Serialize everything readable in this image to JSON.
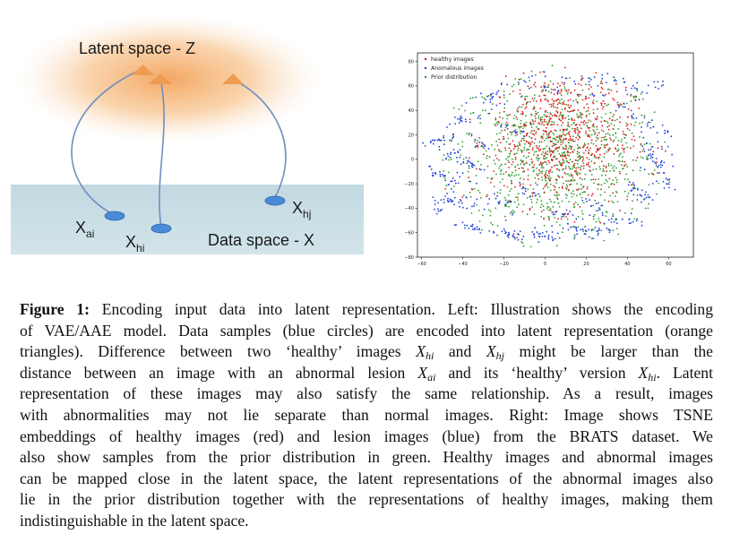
{
  "diagram": {
    "latent_label": "Latent space - Z",
    "data_label": "Data space - X",
    "points": [
      {
        "base": "X",
        "sub": "ai"
      },
      {
        "base": "X",
        "sub": "hi"
      },
      {
        "base": "X",
        "sub": "hj"
      }
    ],
    "colors": {
      "latent_glow": "#f2a25a",
      "triangle": "#ee9c52",
      "data_band": "#c7dce3",
      "circle": "#4b8ad6",
      "curve": "#6f8fc1"
    }
  },
  "chart_data": {
    "type": "scatter",
    "title": "",
    "xlabel": "",
    "ylabel": "",
    "xlim": [
      -62,
      72
    ],
    "ylim": [
      -80,
      87
    ],
    "x_ticks": [
      -60,
      -40,
      -20,
      0,
      20,
      40,
      60
    ],
    "x_tick_labels": [
      "−60",
      "−40",
      "−20",
      "0",
      "20",
      "40",
      "60"
    ],
    "y_ticks": [
      -80,
      -60,
      -40,
      -20,
      0,
      20,
      40,
      60,
      80
    ],
    "y_tick_labels": [
      "−80",
      "−60",
      "−40",
      "−20",
      "0",
      "20",
      "40",
      "60",
      "80"
    ],
    "legend_position": "top-left",
    "series": [
      {
        "name": "healthy images",
        "color": "#e41a1c",
        "distribution": "dense central cluster, centred near (8, 18) with spread ~17 x 28, concentrated toward the upper-centre",
        "approx_count": 650
      },
      {
        "name": "Anomalous images",
        "color": "#1f3fd6",
        "distribution": "streaks and small clusters along the periphery (left edge x ≈ -55..-40, lower band y ≈ -45..-65, right edge x ≈ 40..65)",
        "approx_count": 560
      },
      {
        "name": "Prior distribution",
        "color": "#2e9e2e",
        "distribution": "broad Gaussian-like spread over the whole blob, centre near (5, 0), radius ~ 55 x 70",
        "approx_count": 950
      }
    ]
  },
  "caption": {
    "label": "Figure 1:",
    "lines": [
      " Encoding input data into latent representation. Left: Illustration shows the encoding",
      "of VAE/AAE model. Data samples (blue circles) are encoded into latent representation (orange",
      "triangles). Difference between two ‘healthy’ images",
      "distance between an image with an abnormal lesion",
      "representation of these images may also satisfy the same relationship. As a result, images",
      "with abnormalities may not lie separate than normal images. Right: Image shows TSNE",
      "embeddings of healthy images (red) and lesion images (blue) from the BRATS dataset. We",
      "also show samples from the prior distribution in green. Healthy images and abnormal images",
      "can be mapped close in the latent space, the latent representations of the abnormal images also",
      "lie in the prior distribution together with the representations of healthy images, making them",
      "indistinguishable in the latent space."
    ],
    "line3_and": "and",
    "line3_tail": "might be larger than the",
    "line4_and": "and its ‘healthy’ version",
    "line4_tail": ". Latent",
    "math": [
      {
        "base": "X",
        "sub": "hi"
      },
      {
        "base": "X",
        "sub": "hj"
      },
      {
        "base": "X",
        "sub": "ai"
      },
      {
        "base": "X",
        "sub": "hi"
      }
    ]
  }
}
